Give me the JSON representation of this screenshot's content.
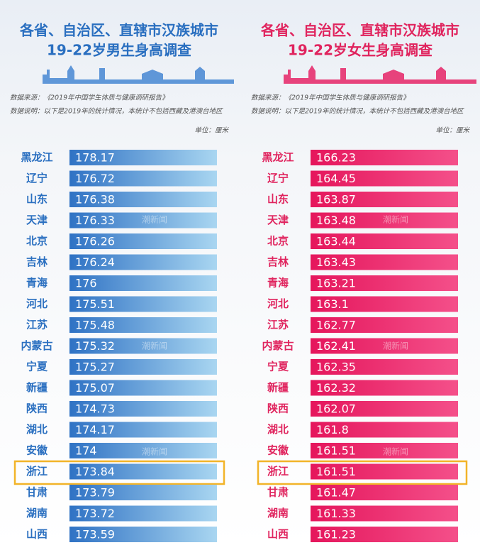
{
  "panels": [
    {
      "title": [
        "各省、自治区、直辖市汉族城市",
        "19-22岁男生身高调查"
      ],
      "source": "数据来源：《2019年中国学生体质与健康调研报告》",
      "note": "数据说明：以下是2019年的统计情况，本统计不包括西藏及港澳台地区",
      "unit": "单位：厘米",
      "rows": [
        [
          "黑龙江",
          178.17
        ],
        [
          "辽宁",
          176.72
        ],
        [
          "山东",
          176.38
        ],
        [
          "天津",
          176.33
        ],
        [
          "北京",
          176.26
        ],
        [
          "吉林",
          176.24
        ],
        [
          "青海",
          176
        ],
        [
          "河北",
          175.51
        ],
        [
          "江苏",
          175.48
        ],
        [
          "内蒙古",
          175.32
        ],
        [
          "宁夏",
          175.27
        ],
        [
          "新疆",
          175.07
        ],
        [
          "陕西",
          174.73
        ],
        [
          "湖北",
          174.17
        ],
        [
          "安徽",
          174
        ],
        [
          "浙江",
          173.84
        ],
        [
          "甘肃",
          173.79
        ],
        [
          "湖南",
          173.72
        ],
        [
          "山西",
          173.59
        ]
      ]
    },
    {
      "title": [
        "各省、自治区、直辖市汉族城市",
        "19-22岁女生身高调查"
      ],
      "source": "数据来源：《2019年中国学生体质与健康调研报告》",
      "note": "数据说明：以下是2019年的统计情况，本统计不包括西藏及港澳台地区",
      "unit": "单位：厘米",
      "rows": [
        [
          "黑龙江",
          166.23
        ],
        [
          "辽宁",
          164.45
        ],
        [
          "山东",
          163.87
        ],
        [
          "天津",
          163.48
        ],
        [
          "北京",
          163.44
        ],
        [
          "吉林",
          163.43
        ],
        [
          "青海",
          163.21
        ],
        [
          "河北",
          163.1
        ],
        [
          "江苏",
          162.77
        ],
        [
          "内蒙古",
          162.41
        ],
        [
          "宁夏",
          162.35
        ],
        [
          "新疆",
          162.32
        ],
        [
          "陕西",
          162.07
        ],
        [
          "湖北",
          161.8
        ],
        [
          "安徽",
          161.51
        ],
        [
          "浙江",
          161.51
        ],
        [
          "甘肃",
          161.47
        ],
        [
          "湖南",
          161.33
        ],
        [
          "山西",
          161.23
        ]
      ]
    }
  ],
  "watermark": "潮新闻"
}
